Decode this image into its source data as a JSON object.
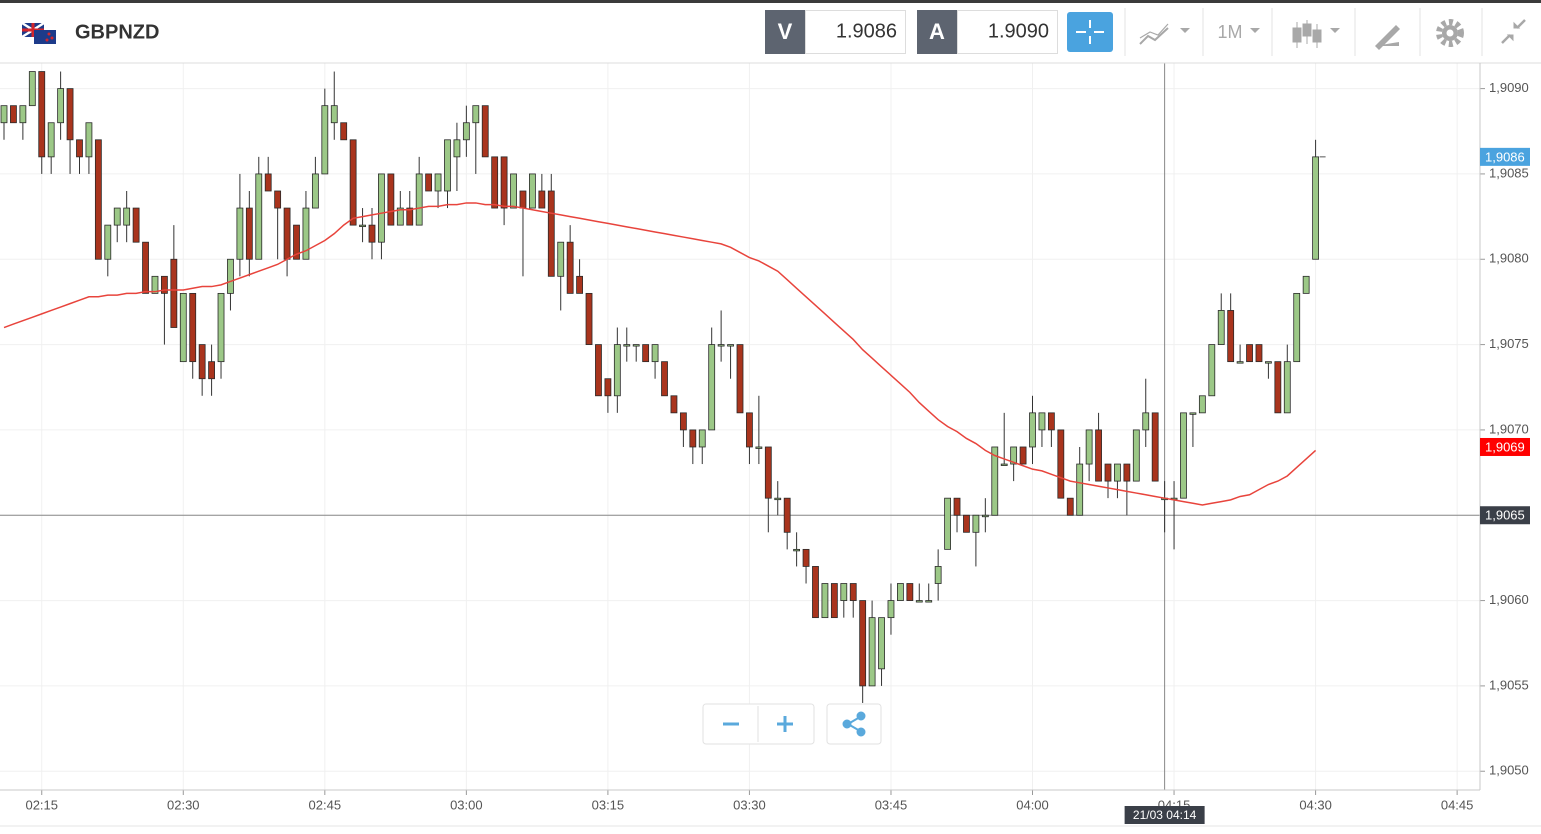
{
  "header": {
    "symbol": "GBPNZD",
    "sell_label": "V",
    "sell_price": "1.9086",
    "buy_label": "A",
    "buy_price": "1.9090",
    "timeframe": "1M"
  },
  "chart_data": {
    "type": "candlestick",
    "x": [
      "02:11",
      "02:12",
      "02:13",
      "02:14",
      "02:15",
      "02:16",
      "02:17",
      "02:18",
      "02:19",
      "02:20",
      "02:21",
      "02:22",
      "02:23",
      "02:24",
      "02:25",
      "02:26",
      "02:27",
      "02:28",
      "02:29",
      "02:30",
      "02:31",
      "02:32",
      "02:33",
      "02:34",
      "02:35",
      "02:36",
      "02:37",
      "02:38",
      "02:39",
      "02:40",
      "02:41",
      "02:42",
      "02:43",
      "02:44",
      "02:45",
      "02:46",
      "02:47",
      "02:48",
      "02:49",
      "02:50",
      "02:51",
      "02:52",
      "02:53",
      "02:54",
      "02:55",
      "02:56",
      "02:57",
      "02:58",
      "02:59",
      "03:00",
      "03:01",
      "03:02",
      "03:03",
      "03:04",
      "03:05",
      "03:06",
      "03:07",
      "03:08",
      "03:09",
      "03:10",
      "03:11",
      "03:12",
      "03:13",
      "03:14",
      "03:15",
      "03:16",
      "03:17",
      "03:18",
      "03:19",
      "03:20",
      "03:21",
      "03:22",
      "03:23",
      "03:24",
      "03:25",
      "03:26",
      "03:27",
      "03:28",
      "03:29",
      "03:30",
      "03:31",
      "03:32",
      "03:33",
      "03:34",
      "03:35",
      "03:36",
      "03:37",
      "03:38",
      "03:39",
      "03:40",
      "03:41",
      "03:42",
      "03:43",
      "03:44",
      "03:45",
      "03:46",
      "03:47",
      "03:48",
      "03:49",
      "03:50",
      "03:51",
      "03:52",
      "03:53",
      "03:54",
      "03:55",
      "03:56",
      "03:57",
      "03:58",
      "03:59",
      "04:00",
      "04:01",
      "04:02",
      "04:03",
      "04:04",
      "04:05",
      "04:06",
      "04:07",
      "04:08",
      "04:09",
      "04:10",
      "04:11",
      "04:12",
      "04:13",
      "04:14",
      "04:15",
      "04:16",
      "04:17",
      "04:18",
      "04:19",
      "04:20",
      "04:21",
      "04:22",
      "04:23",
      "04:24",
      "04:25",
      "04:26",
      "04:27",
      "04:28",
      "04:29",
      "04:30"
    ],
    "open": [
      1.9088,
      1.9089,
      1.9088,
      1.9089,
      1.9091,
      1.9086,
      1.9088,
      1.909,
      1.9087,
      1.9086,
      1.9087,
      1.908,
      1.9082,
      1.9082,
      1.9083,
      1.9081,
      1.9078,
      1.9079,
      1.908,
      1.9074,
      1.9078,
      1.9075,
      1.9074,
      1.9074,
      1.9078,
      1.908,
      1.9083,
      1.908,
      1.9085,
      1.9084,
      1.9083,
      1.9082,
      1.908,
      1.9083,
      1.9085,
      1.9088,
      1.9088,
      1.9087,
      1.9082,
      1.9082,
      1.9081,
      1.9085,
      1.9082,
      1.9083,
      1.9082,
      1.9085,
      1.9084,
      1.9084,
      1.9086,
      1.9087,
      1.9088,
      1.9089,
      1.9086,
      1.9086,
      1.9083,
      1.9084,
      1.9083,
      1.9084,
      1.9084,
      1.9079,
      1.9081,
      1.9079,
      1.9078,
      1.9075,
      1.9073,
      1.9072,
      1.9075,
      1.9075,
      1.9075,
      1.9074,
      1.9074,
      1.9072,
      1.9071,
      1.907,
      1.9069,
      1.907,
      1.9075,
      1.9075,
      1.9075,
      1.9071,
      1.9069,
      1.9069,
      1.9066,
      1.9066,
      1.9063,
      1.9063,
      1.9062,
      1.9059,
      1.9061,
      1.906,
      1.9061,
      1.906,
      1.9055,
      1.9056,
      1.9059,
      1.906,
      1.9061,
      1.906,
      1.906,
      1.9061,
      1.9063,
      1.9066,
      1.9065,
      1.9064,
      1.9065,
      1.9065,
      1.9068,
      1.9068,
      1.9069,
      1.9069,
      1.907,
      1.9071,
      1.907,
      1.9066,
      1.9065,
      1.9068,
      1.907,
      1.9068,
      1.9067,
      1.9068,
      1.9067,
      1.907,
      1.9071,
      1.9066,
      1.9066,
      1.9066,
      1.9071,
      1.9071,
      1.9072,
      1.9075,
      1.9077,
      1.9074,
      1.9075,
      1.9075,
      1.9074,
      1.9074,
      1.9071,
      1.9074,
      1.9078,
      1.908
    ],
    "high": [
      1.9089,
      1.9089,
      1.9089,
      1.9091,
      1.9091,
      1.9088,
      1.9091,
      1.909,
      1.9087,
      1.9088,
      1.9087,
      1.9082,
      1.9083,
      1.9084,
      1.9083,
      1.9081,
      1.9079,
      1.9079,
      1.9082,
      1.9078,
      1.9078,
      1.9075,
      1.9075,
      1.9078,
      1.908,
      1.9085,
      1.9084,
      1.9086,
      1.9086,
      1.9084,
      1.9083,
      1.9082,
      1.9084,
      1.9086,
      1.909,
      1.9091,
      1.9088,
      1.9087,
      1.9083,
      1.9083,
      1.9085,
      1.9085,
      1.9084,
      1.9084,
      1.9086,
      1.9085,
      1.9085,
      1.9087,
      1.9088,
      1.9089,
      1.9089,
      1.9089,
      1.9086,
      1.9086,
      1.9085,
      1.9084,
      1.9085,
      1.9085,
      1.9085,
      1.9081,
      1.9082,
      1.908,
      1.9078,
      1.9075,
      1.9073,
      1.9076,
      1.9076,
      1.9075,
      1.9075,
      1.9075,
      1.9074,
      1.9072,
      1.9071,
      1.907,
      1.907,
      1.9076,
      1.9077,
      1.9075,
      1.9075,
      1.9071,
      1.9072,
      1.9069,
      1.9067,
      1.9066,
      1.9064,
      1.9063,
      1.9062,
      1.9061,
      1.9061,
      1.9061,
      1.9061,
      1.906,
      1.906,
      1.9059,
      1.9061,
      1.9061,
      1.9061,
      1.9061,
      1.9061,
      1.9063,
      1.9066,
      1.9066,
      1.9065,
      1.9065,
      1.9066,
      1.9069,
      1.9071,
      1.9069,
      1.9069,
      1.9072,
      1.9071,
      1.9071,
      1.907,
      1.9066,
      1.9069,
      1.907,
      1.9071,
      1.9068,
      1.9068,
      1.9068,
      1.907,
      1.9073,
      1.9071,
      1.9067,
      1.9067,
      1.9071,
      1.9071,
      1.9072,
      1.9075,
      1.9078,
      1.9078,
      1.9075,
      1.9075,
      1.9075,
      1.9074,
      1.9074,
      1.9075,
      1.9078,
      1.9079,
      1.9087
    ],
    "low": [
      1.9087,
      1.9088,
      1.9087,
      1.9089,
      1.9085,
      1.9085,
      1.9087,
      1.9085,
      1.9085,
      1.9085,
      1.908,
      1.9079,
      1.9081,
      1.9081,
      1.9081,
      1.9078,
      1.9078,
      1.9075,
      1.9076,
      1.9074,
      1.9073,
      1.9072,
      1.9072,
      1.9073,
      1.9077,
      1.9079,
      1.9079,
      1.908,
      1.9084,
      1.908,
      1.9079,
      1.908,
      1.908,
      1.9083,
      1.9085,
      1.9087,
      1.9087,
      1.9082,
      1.9081,
      1.908,
      1.908,
      1.9082,
      1.9082,
      1.9082,
      1.9082,
      1.9084,
      1.9083,
      1.9083,
      1.9084,
      1.9086,
      1.9085,
      1.9086,
      1.9083,
      1.9082,
      1.9083,
      1.9079,
      1.9083,
      1.9083,
      1.9079,
      1.9077,
      1.9078,
      1.9078,
      1.9075,
      1.9072,
      1.9071,
      1.9071,
      1.9074,
      1.9074,
      1.9074,
      1.9073,
      1.9072,
      1.9071,
      1.9069,
      1.9068,
      1.9068,
      1.907,
      1.9074,
      1.9073,
      1.9071,
      1.9068,
      1.9068,
      1.9064,
      1.9065,
      1.9063,
      1.9062,
      1.9061,
      1.9059,
      1.9059,
      1.9059,
      1.9059,
      1.9059,
      1.9054,
      1.9055,
      1.9055,
      1.9058,
      1.906,
      1.906,
      1.906,
      1.906,
      1.906,
      1.9063,
      1.9064,
      1.9064,
      1.9062,
      1.9064,
      1.9065,
      1.9068,
      1.9067,
      1.9068,
      1.9068,
      1.9069,
      1.9069,
      1.9066,
      1.9065,
      1.9065,
      1.9067,
      1.9067,
      1.9066,
      1.9066,
      1.9065,
      1.9067,
      1.9069,
      1.9067,
      1.9064,
      1.9063,
      1.9066,
      1.9069,
      1.9071,
      1.9072,
      1.9075,
      1.9074,
      1.9074,
      1.9074,
      1.9074,
      1.9073,
      1.9071,
      1.9071,
      1.9074,
      1.9078,
      1.908
    ],
    "close": [
      1.9089,
      1.9088,
      1.9089,
      1.9091,
      1.9086,
      1.9088,
      1.909,
      1.9087,
      1.9086,
      1.9088,
      1.908,
      1.9082,
      1.9083,
      1.9083,
      1.9081,
      1.9078,
      1.9079,
      1.9078,
      1.9076,
      1.9078,
      1.9074,
      1.9073,
      1.9073,
      1.9078,
      1.908,
      1.9083,
      1.908,
      1.9085,
      1.9084,
      1.9083,
      1.908,
      1.908,
      1.9083,
      1.9085,
      1.9089,
      1.9089,
      1.9087,
      1.9082,
      1.9082,
      1.9081,
      1.9085,
      1.9082,
      1.9083,
      1.9082,
      1.9085,
      1.9084,
      1.9085,
      1.9087,
      1.9087,
      1.9088,
      1.9089,
      1.9086,
      1.9083,
      1.9083,
      1.9085,
      1.9083,
      1.9085,
      1.9083,
      1.9079,
      1.9081,
      1.9078,
      1.9078,
      1.9075,
      1.9072,
      1.9072,
      1.9075,
      1.9075,
      1.9075,
      1.9074,
      1.9075,
      1.9072,
      1.9071,
      1.907,
      1.9069,
      1.907,
      1.9075,
      1.9075,
      1.9075,
      1.9071,
      1.9069,
      1.9069,
      1.9066,
      1.9066,
      1.9064,
      1.9063,
      1.9062,
      1.9059,
      1.9061,
      1.9059,
      1.9061,
      1.906,
      1.9055,
      1.9059,
      1.9059,
      1.906,
      1.9061,
      1.906,
      1.906,
      1.906,
      1.9062,
      1.9066,
      1.9065,
      1.9064,
      1.9065,
      1.9065,
      1.9069,
      1.9068,
      1.9069,
      1.9068,
      1.9071,
      1.9071,
      1.907,
      1.9066,
      1.9065,
      1.9068,
      1.907,
      1.9067,
      1.9067,
      1.9068,
      1.9067,
      1.907,
      1.9071,
      1.9067,
      1.9066,
      1.9066,
      1.9071,
      1.9071,
      1.9072,
      1.9075,
      1.9077,
      1.9074,
      1.9074,
      1.9074,
      1.9074,
      1.9074,
      1.9071,
      1.9074,
      1.9078,
      1.9079,
      1.9086
    ],
    "up_color": "#9cc887",
    "down_color": "#a9341d",
    "ma": {
      "color": "#e8443c",
      "values": [
        1.9076,
        1.90762,
        1.90764,
        1.90766,
        1.90768,
        1.9077,
        1.90772,
        1.90774,
        1.90776,
        1.90778,
        1.90778,
        1.90779,
        1.90779,
        1.9078,
        1.9078,
        1.90781,
        1.90781,
        1.90782,
        1.90782,
        1.90782,
        1.90783,
        1.90784,
        1.90784,
        1.90785,
        1.90787,
        1.90789,
        1.90791,
        1.90793,
        1.90795,
        1.90797,
        1.908,
        1.90803,
        1.90805,
        1.90808,
        1.90811,
        1.90815,
        1.9082,
        1.90824,
        1.90825,
        1.90826,
        1.90827,
        1.90828,
        1.90829,
        1.90829,
        1.9083,
        1.90831,
        1.90831,
        1.90832,
        1.90832,
        1.90833,
        1.90833,
        1.90832,
        1.90832,
        1.90831,
        1.90831,
        1.9083,
        1.90829,
        1.90828,
        1.90827,
        1.90826,
        1.90825,
        1.90824,
        1.90823,
        1.90822,
        1.90821,
        1.9082,
        1.90819,
        1.90818,
        1.90817,
        1.90816,
        1.90815,
        1.90814,
        1.90813,
        1.90812,
        1.90811,
        1.9081,
        1.90809,
        1.90807,
        1.90804,
        1.90801,
        1.90799,
        1.90796,
        1.90793,
        1.90788,
        1.90783,
        1.90778,
        1.90773,
        1.90768,
        1.90763,
        1.90758,
        1.90753,
        1.90747,
        1.90742,
        1.90737,
        1.90732,
        1.90727,
        1.90722,
        1.90716,
        1.90711,
        1.90706,
        1.90702,
        1.90699,
        1.90695,
        1.90692,
        1.90688,
        1.90685,
        1.90683,
        1.90681,
        1.90679,
        1.90677,
        1.90676,
        1.90674,
        1.90672,
        1.9067,
        1.90669,
        1.90668,
        1.90667,
        1.90666,
        1.90665,
        1.90664,
        1.90663,
        1.90662,
        1.90661,
        1.9066,
        1.90659,
        1.90658,
        1.90657,
        1.90656,
        1.90657,
        1.90658,
        1.90659,
        1.90661,
        1.90662,
        1.90665,
        1.90668,
        1.9067,
        1.90673,
        1.90678,
        1.90683,
        1.90688
      ]
    },
    "xlim": [
      "02:11",
      "04:47"
    ],
    "xticks": [
      "02:15",
      "02:30",
      "02:45",
      "03:00",
      "03:15",
      "03:30",
      "03:45",
      "04:00",
      "04:15",
      "04:30",
      "04:45"
    ],
    "ylim": [
      1.90489,
      1.90915
    ],
    "yticks": [
      {
        "value": 1.905,
        "label": "1,9050"
      },
      {
        "value": 1.9055,
        "label": "1,9055"
      },
      {
        "value": 1.906,
        "label": "1,9060"
      },
      {
        "value": 1.9065,
        "label": "1,9065"
      },
      {
        "value": 1.907,
        "label": "1,9070"
      },
      {
        "value": 1.9075,
        "label": "1,9075"
      },
      {
        "value": 1.908,
        "label": "1,9080"
      },
      {
        "value": 1.9085,
        "label": "1,9085"
      },
      {
        "value": 1.909,
        "label": "1,9090"
      }
    ],
    "grid": true,
    "price_tags": [
      {
        "value": 1.9086,
        "label": "1,9086",
        "color": "#4aa3df"
      },
      {
        "value": 1.9069,
        "label": "1,9069",
        "color": "#ff0000"
      }
    ],
    "crosshair": {
      "time": "04:14",
      "label": "21/03 04:14",
      "value": 1.9065,
      "value_label": "1,9065",
      "color": "#3a3f48"
    }
  }
}
